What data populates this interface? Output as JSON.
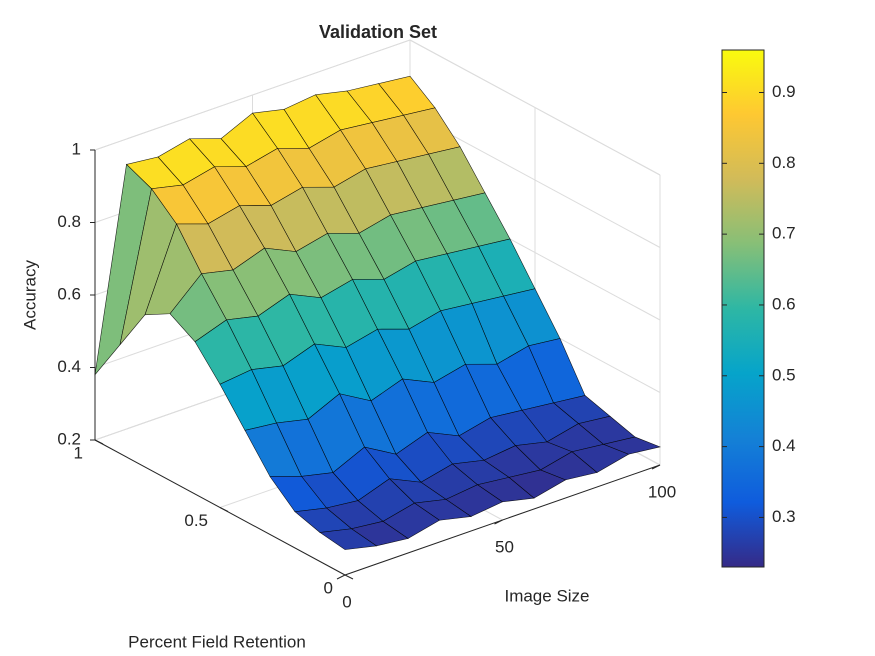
{
  "chart_data": {
    "type": "surface",
    "title": "Validation Set",
    "xlabel": "Image Size",
    "ylabel": "Percent Field Retention",
    "zlabel": "Accuracy",
    "x": [
      0,
      10,
      20,
      30,
      40,
      50,
      60,
      70,
      80,
      90,
      100
    ],
    "y": [
      0,
      0.1,
      0.2,
      0.3,
      0.4,
      0.5,
      0.6,
      0.7,
      0.8,
      0.9,
      1
    ],
    "z": [
      [
        0.27,
        0.25,
        0.24,
        0.26,
        0.24,
        0.25,
        0.23,
        0.25,
        0.24,
        0.26,
        0.25
      ],
      [
        0.28,
        0.26,
        0.25,
        0.27,
        0.25,
        0.26,
        0.25,
        0.24,
        0.26,
        0.25,
        0.24
      ],
      [
        0.3,
        0.28,
        0.27,
        0.3,
        0.26,
        0.28,
        0.26,
        0.27,
        0.25,
        0.27,
        0.26
      ],
      [
        0.36,
        0.33,
        0.31,
        0.35,
        0.3,
        0.33,
        0.29,
        0.31,
        0.3,
        0.29,
        0.28
      ],
      [
        0.45,
        0.44,
        0.42,
        0.46,
        0.41,
        0.44,
        0.4,
        0.42,
        0.39,
        0.41,
        0.4
      ],
      [
        0.54,
        0.55,
        0.53,
        0.56,
        0.52,
        0.54,
        0.51,
        0.53,
        0.52,
        0.51,
        0.5
      ],
      [
        0.62,
        0.65,
        0.63,
        0.66,
        0.62,
        0.64,
        0.61,
        0.63,
        0.62,
        0.61,
        0.6
      ],
      [
        0.66,
        0.74,
        0.72,
        0.75,
        0.71,
        0.73,
        0.7,
        0.72,
        0.71,
        0.7,
        0.69
      ],
      [
        0.62,
        0.84,
        0.81,
        0.83,
        0.8,
        0.82,
        0.79,
        0.81,
        0.8,
        0.79,
        0.78
      ],
      [
        0.5,
        0.9,
        0.88,
        0.9,
        0.87,
        0.89,
        0.86,
        0.88,
        0.87,
        0.86,
        0.85
      ],
      [
        0.38,
        0.93,
        0.92,
        0.94,
        0.91,
        0.95,
        0.93,
        0.94,
        0.92,
        0.91,
        0.9
      ]
    ],
    "xlim": [
      0,
      100
    ],
    "xticks": [
      0,
      50,
      100
    ],
    "ylim": [
      0,
      1
    ],
    "yticks": [
      0,
      0.5,
      1
    ],
    "zlim": [
      0.2,
      1
    ],
    "zticks": [
      0.2,
      0.4,
      0.6,
      0.8,
      1
    ],
    "grid": true,
    "colormap": [
      "#352a87",
      "#0f5cdd",
      "#1481d6",
      "#06a4ca",
      "#2eb7a4",
      "#87bf77",
      "#d1bb59",
      "#fec832",
      "#f9fb0e"
    ],
    "clim": [
      0.23,
      0.96
    ],
    "cticks": [
      0.3,
      0.4,
      0.5,
      0.6,
      0.7,
      0.8,
      0.9
    ]
  }
}
